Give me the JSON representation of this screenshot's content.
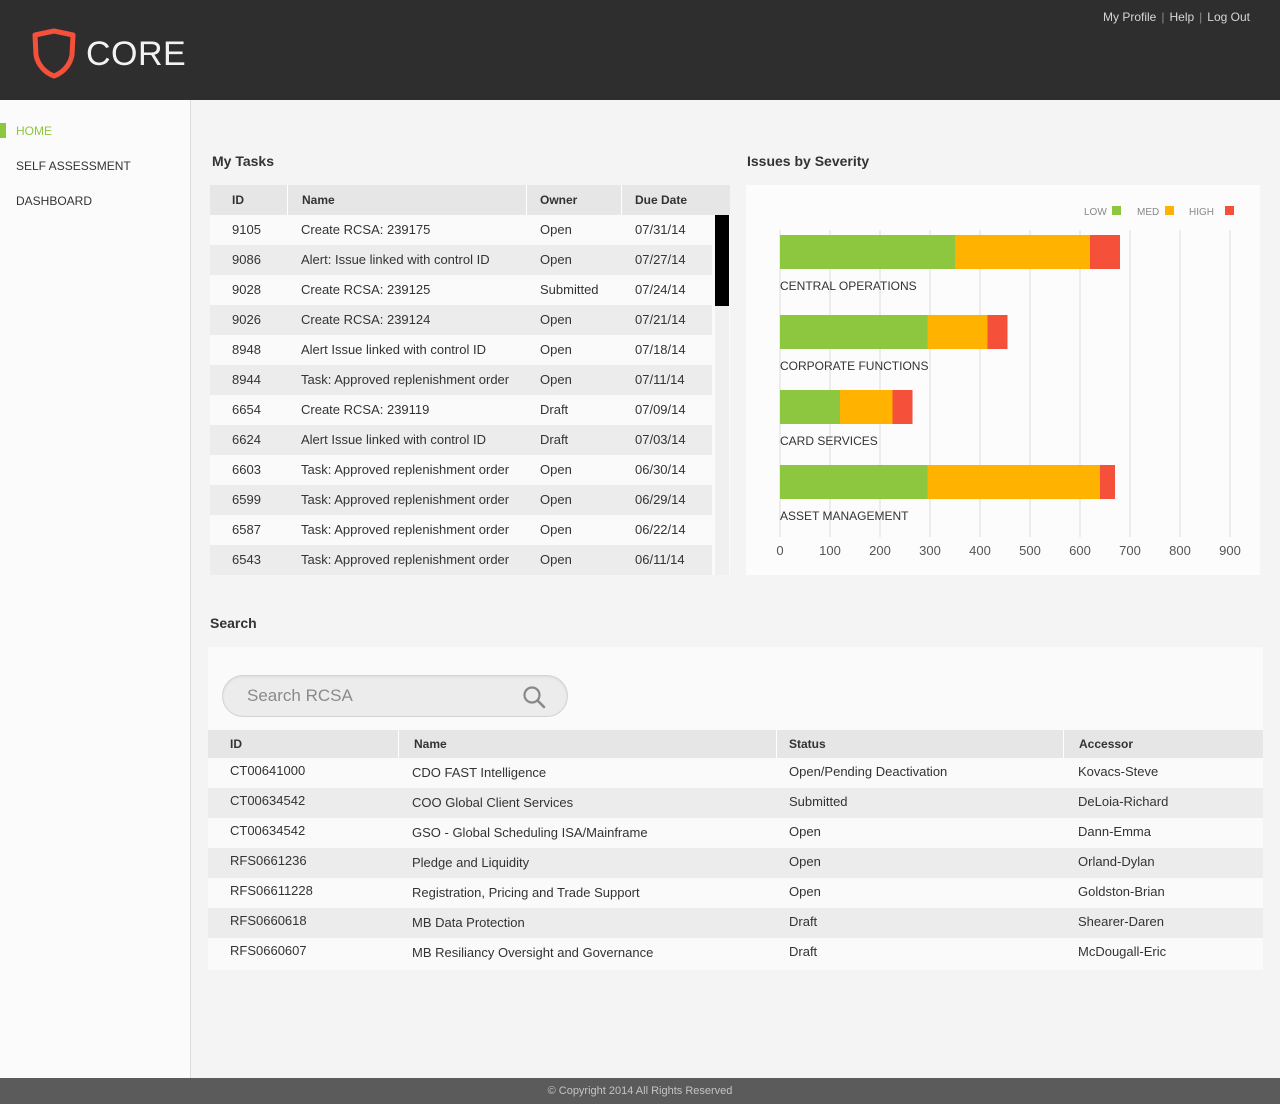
{
  "header": {
    "app_name": "CORE",
    "links": {
      "profile": "My Profile",
      "help": "Help",
      "logout": "Log Out"
    },
    "separator": "|"
  },
  "sidebar": {
    "items": [
      {
        "label": "HOME",
        "active": true
      },
      {
        "label": "SELF ASSESSMENT",
        "active": false
      },
      {
        "label": "DASHBOARD",
        "active": false
      }
    ]
  },
  "tasks": {
    "title": "My Tasks",
    "columns": [
      "ID",
      "Name",
      "Owner",
      "Due Date"
    ],
    "rows": [
      [
        "9105",
        "Create RCSA: 239175",
        "Open",
        "07/31/14"
      ],
      [
        "9086",
        "Alert: Issue linked with control ID",
        "Open",
        "07/27/14"
      ],
      [
        "9028",
        "Create RCSA: 239125",
        "Submitted",
        "07/24/14"
      ],
      [
        "9026",
        "Create RCSA: 239124",
        "Open",
        "07/21/14"
      ],
      [
        "8948",
        "Alert Issue linked with control ID",
        "Open",
        "07/18/14"
      ],
      [
        "8944",
        "Task: Approved replenishment order",
        "Open",
        "07/11/14"
      ],
      [
        "6654",
        "Create RCSA: 239119",
        "Draft",
        "07/09/14"
      ],
      [
        "6624",
        "Alert Issue linked with control ID",
        "Draft",
        "07/03/14"
      ],
      [
        "6603",
        "Task: Approved replenishment order",
        "Open",
        "06/30/14"
      ],
      [
        "6599",
        "Task: Approved replenishment order",
        "Open",
        "06/29/14"
      ],
      [
        "6587",
        "Task: Approved replenishment order",
        "Open",
        "06/22/14"
      ],
      [
        "6543",
        "Task: Approved replenishment order",
        "Open",
        "06/11/14"
      ]
    ]
  },
  "chart_data": {
    "type": "bar",
    "orientation": "horizontal",
    "stacked": true,
    "title": "Issues by Severity",
    "categories": [
      "CENTRAL OPERATIONS",
      "CORPORATE FUNCTIONS",
      "CARD SERVICES",
      "ASSET MANAGEMENT"
    ],
    "series": [
      {
        "name": "LOW",
        "color": "#8dc63f",
        "values": [
          350,
          295,
          120,
          295
        ]
      },
      {
        "name": "MED",
        "color": "#ffb300",
        "values": [
          270,
          120,
          105,
          345
        ]
      },
      {
        "name": "HIGH",
        "color": "#f4503a",
        "values": [
          60,
          40,
          40,
          30
        ]
      }
    ],
    "xlim": [
      0,
      900
    ],
    "xticks": [
      0,
      100,
      200,
      300,
      400,
      500,
      600,
      700,
      800,
      900
    ],
    "grid": true,
    "legend": "top-right"
  },
  "search": {
    "title": "Search",
    "placeholder": "Search RCSA",
    "columns": [
      "ID",
      "Name",
      "Status",
      "Accessor"
    ],
    "rows": [
      [
        "CT00641000",
        "CDO FAST Intelligence",
        "Open/Pending Deactivation",
        "Kovacs-Steve"
      ],
      [
        "CT00634542",
        "COO Global Client Services",
        "Submitted",
        "DeLoia-Richard"
      ],
      [
        "CT00634542",
        "GSO - Global Scheduling ISA/Mainframe",
        "Open",
        "Dann-Emma"
      ],
      [
        "RFS0661236",
        "Pledge and Liquidity",
        "Open",
        "Orland-Dylan"
      ],
      [
        "RFS06611228",
        "Registration, Pricing and Trade Support",
        "Open",
        "Goldston-Brian"
      ],
      [
        "RFS0660618",
        "MB Data Protection",
        "Draft",
        "Shearer-Daren"
      ],
      [
        "RFS0660607",
        "MB Resiliancy Oversight and Governance",
        "Draft",
        "McDougall-Eric"
      ]
    ]
  },
  "footer": {
    "text": "© Copyright 2014  All Rights Reserved"
  },
  "colors": {
    "accent": "#8dc63f",
    "logo": "#f4503a",
    "header_bg": "#2e2e2e"
  }
}
